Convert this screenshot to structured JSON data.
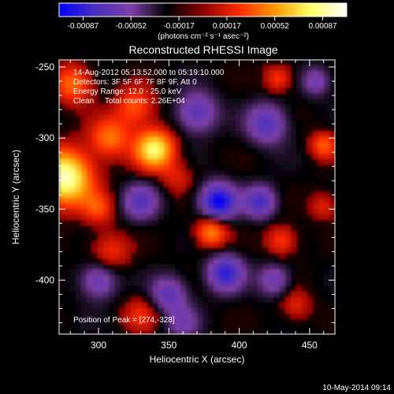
{
  "colorbar": {
    "tick_labels": [
      "-0.00087",
      "-0.00052",
      "-0.00017",
      "0.00017",
      "0.00052",
      "0.00087"
    ],
    "units_label": "(photons cm⁻² s⁻¹ asec⁻²)",
    "colors": [
      "#0000ff",
      "#4b2fbf",
      "#7d3fa6",
      "#000000",
      "#8a0000",
      "#ff2a00",
      "#ff9900",
      "#ffff66",
      "#ffffff"
    ]
  },
  "image": {
    "title": "Reconstructed RHESSI Image",
    "info_lines": [
      "14-Aug-2012 05:13:52.000 to 05:19:10.000",
      "Detectors: 3F 5F 6F 7F 8F 9F, Att 0",
      "Energy Range: 12.0 - 25.0 keV",
      "Clean     Total counts: 2.26E+04"
    ],
    "peak_label": "Position of Peak = [274,-328]",
    "xlabel": "Heliocentric X (arcsec)",
    "ylabel": "Heliocentric Y (arcsec)",
    "x_ticks": [
      "300",
      "350",
      "400",
      "450"
    ],
    "y_ticks": [
      "-250",
      "-300",
      "-350",
      "-400"
    ],
    "xlim": [
      272,
      468
    ],
    "ylim": [
      -438,
      -245
    ],
    "blobs": [
      {
        "x": 276,
        "y": -328,
        "amp": 1.0,
        "s": 14
      },
      {
        "x": 340,
        "y": -308,
        "amp": 0.85,
        "s": 10
      },
      {
        "x": 326,
        "y": -278,
        "amp": 0.45,
        "s": 10
      },
      {
        "x": 282,
        "y": -262,
        "amp": 0.5,
        "s": 10
      },
      {
        "x": 308,
        "y": -300,
        "amp": 0.5,
        "s": 10
      },
      {
        "x": 300,
        "y": -350,
        "amp": 0.35,
        "s": 8
      },
      {
        "x": 308,
        "y": -380,
        "amp": 0.35,
        "s": 10
      },
      {
        "x": 380,
        "y": -366,
        "amp": 0.6,
        "s": 8
      },
      {
        "x": 356,
        "y": -328,
        "amp": 0.25,
        "s": 8
      },
      {
        "x": 460,
        "y": -305,
        "amp": 0.45,
        "s": 7
      },
      {
        "x": 428,
        "y": -258,
        "amp": 0.4,
        "s": 7
      },
      {
        "x": 430,
        "y": -372,
        "amp": 0.4,
        "s": 8
      },
      {
        "x": 440,
        "y": -418,
        "amp": 0.3,
        "s": 8
      },
      {
        "x": 330,
        "y": -424,
        "amp": 0.3,
        "s": 9
      },
      {
        "x": 460,
        "y": -348,
        "amp": 0.3,
        "s": 7
      },
      {
        "x": 370,
        "y": -282,
        "amp": -0.55,
        "s": 10
      },
      {
        "x": 420,
        "y": -290,
        "amp": -0.55,
        "s": 10
      },
      {
        "x": 385,
        "y": -345,
        "amp": -0.9,
        "s": 9
      },
      {
        "x": 415,
        "y": -345,
        "amp": -0.6,
        "s": 8
      },
      {
        "x": 330,
        "y": -345,
        "amp": -0.5,
        "s": 9
      },
      {
        "x": 300,
        "y": -400,
        "amp": -0.5,
        "s": 9
      },
      {
        "x": 390,
        "y": -395,
        "amp": -0.7,
        "s": 9
      },
      {
        "x": 350,
        "y": -410,
        "amp": -0.5,
        "s": 9
      },
      {
        "x": 425,
        "y": -400,
        "amp": -0.45,
        "s": 8
      },
      {
        "x": 455,
        "y": -260,
        "amp": -0.4,
        "s": 7
      },
      {
        "x": 360,
        "y": -430,
        "amp": -0.35,
        "s": 8
      }
    ]
  },
  "footer": {
    "timestamp": "10-May-2014 09:14"
  }
}
